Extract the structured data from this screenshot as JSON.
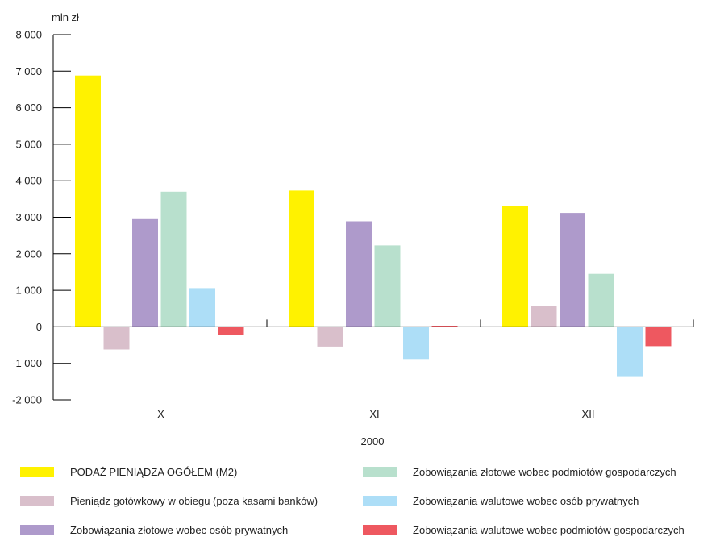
{
  "chart_data": {
    "type": "bar",
    "y_unit_label": "mln zł",
    "year_label": "2000",
    "categories": [
      "X",
      "XI",
      "XII"
    ],
    "ylim": [
      -2000,
      8000
    ],
    "yticks": [
      {
        "value": 8000,
        "label": "8 000"
      },
      {
        "value": 7000,
        "label": "7 000"
      },
      {
        "value": 6000,
        "label": "6 000"
      },
      {
        "value": 5000,
        "label": "5 000"
      },
      {
        "value": 4000,
        "label": "4 000"
      },
      {
        "value": 3000,
        "label": "3 000"
      },
      {
        "value": 2000,
        "label": "2 000"
      },
      {
        "value": 1000,
        "label": "1 000"
      },
      {
        "value": 0,
        "label": "0"
      },
      {
        "value": -1000,
        "label": "-1 000"
      },
      {
        "value": -2000,
        "label": "-2 000"
      }
    ],
    "series": [
      {
        "name": "PODAŻ PIENIĄDZA OGÓŁEM (M2)",
        "color": "#FFF200",
        "values": [
          6880,
          3730,
          3320
        ]
      },
      {
        "name": "Pieniądz gotówkowy w obiegu (poza kasami banków)",
        "color": "#D9BFCB",
        "values": [
          -620,
          -540,
          570
        ]
      },
      {
        "name": "Zobowiązania złotowe wobec osób prywatnych",
        "color": "#AE9ACB",
        "values": [
          2950,
          2890,
          3120
        ]
      },
      {
        "name": "Zobowiązania złotowe wobec podmiotów gospodarczych",
        "color": "#B8E0CD",
        "values": [
          3700,
          2230,
          1450
        ]
      },
      {
        "name": "Zobowiązania walutowe wobec osób prywatnych",
        "color": "#ADDEF7",
        "values": [
          1060,
          -880,
          -1350
        ]
      },
      {
        "name": "Zobowiązania walutowe wobec podmiotów gospodarczych",
        "color": "#EE5860",
        "values": [
          -230,
          30,
          -530
        ]
      }
    ],
    "legend_placement": "bottom, two columns",
    "grid": false
  }
}
